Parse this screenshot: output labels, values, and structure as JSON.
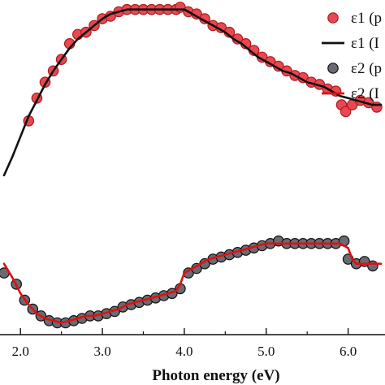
{
  "chart_data": {
    "type": "line",
    "xlabel": "Photon energy (eV)",
    "x_ticks": [
      "2.0",
      "3.0",
      "4.0",
      "5.0",
      "6.0"
    ],
    "xlim": [
      1.75,
      6.45
    ],
    "ylim": [
      -3.2,
      10.2
    ],
    "legend_position": "top-right",
    "legend": [
      {
        "label": "ε1 (p",
        "kind": "marker",
        "fill": "#e8484f",
        "stroke": "#b01820"
      },
      {
        "label": "ε1 (I",
        "kind": "line",
        "color": "#111111"
      },
      {
        "label": "ε2 (p",
        "kind": "marker",
        "fill": "#6a6a72",
        "stroke": "#111111"
      },
      {
        "label": "ε2 (I",
        "kind": "line",
        "color": "#e01010"
      }
    ],
    "series": [
      {
        "name": "ε1 (p",
        "kind": "markers",
        "fill": "#e8484f",
        "stroke": "#b01820",
        "x": [
          2.1,
          2.2,
          2.3,
          2.4,
          2.5,
          2.6,
          2.7,
          2.8,
          2.9,
          3.0,
          3.1,
          3.2,
          3.3,
          3.4,
          3.5,
          3.6,
          3.7,
          3.8,
          3.9,
          3.95,
          4.05,
          4.15,
          4.25,
          4.35,
          4.45,
          4.55,
          4.65,
          4.75,
          4.85,
          4.95,
          5.05,
          5.15,
          5.25,
          5.35,
          5.45,
          5.55,
          5.65,
          5.75,
          5.85,
          5.92,
          5.97,
          6.05,
          6.15,
          6.25,
          6.35
        ],
        "y": [
          5.36,
          6.27,
          6.91,
          7.36,
          7.82,
          8.45,
          8.82,
          8.91,
          9.18,
          9.45,
          9.55,
          9.73,
          9.82,
          9.82,
          9.82,
          9.82,
          9.82,
          9.82,
          9.82,
          9.91,
          9.73,
          9.64,
          9.45,
          9.18,
          9.09,
          8.91,
          8.64,
          8.45,
          8.18,
          7.91,
          7.73,
          7.55,
          7.36,
          7.18,
          7.09,
          6.91,
          6.82,
          6.64,
          6.55,
          6.0,
          5.73,
          6.0,
          6.18,
          6.09,
          5.91
        ]
      },
      {
        "name": "ε1 (I",
        "kind": "line",
        "color": "#111111",
        "x": [
          1.8,
          1.9,
          2.0,
          2.1,
          2.2,
          2.3,
          2.4,
          2.5,
          2.6,
          2.7,
          2.8,
          2.9,
          3.0,
          3.1,
          3.2,
          3.3,
          3.4,
          3.5,
          3.6,
          3.7,
          3.8,
          3.9,
          4.0,
          4.1,
          4.2,
          4.3,
          4.4,
          4.5,
          4.6,
          4.7,
          4.8,
          4.9,
          5.0,
          5.1,
          5.2,
          5.3,
          5.4,
          5.5,
          5.6,
          5.7,
          5.8,
          5.9,
          6.0,
          6.1,
          6.2,
          6.3,
          6.4
        ],
        "y": [
          3.18,
          3.91,
          4.73,
          5.55,
          6.18,
          6.82,
          7.36,
          7.82,
          8.27,
          8.64,
          8.91,
          9.18,
          9.45,
          9.64,
          9.73,
          9.82,
          9.82,
          9.82,
          9.82,
          9.82,
          9.82,
          9.82,
          9.82,
          9.64,
          9.45,
          9.27,
          9.09,
          8.91,
          8.64,
          8.45,
          8.18,
          7.91,
          7.73,
          7.55,
          7.36,
          7.27,
          7.09,
          6.91,
          6.82,
          6.73,
          6.55,
          6.36,
          6.27,
          6.18,
          6.09,
          6.0,
          6.0
        ]
      },
      {
        "name": "ε2 (p",
        "kind": "markers",
        "fill": "#6a6a72",
        "stroke": "#111111",
        "x": [
          1.8,
          1.95,
          2.05,
          2.15,
          2.25,
          2.35,
          2.45,
          2.55,
          2.65,
          2.75,
          2.85,
          2.95,
          3.05,
          3.15,
          3.25,
          3.35,
          3.45,
          3.55,
          3.65,
          3.75,
          3.85,
          3.95,
          4.05,
          4.15,
          4.25,
          4.35,
          4.45,
          4.55,
          4.65,
          4.75,
          4.85,
          4.95,
          5.05,
          5.15,
          5.25,
          5.35,
          5.45,
          5.55,
          5.65,
          5.75,
          5.85,
          5.95,
          6.0,
          6.1,
          6.2,
          6.3
        ],
        "y": [
          -0.73,
          -1.18,
          -1.82,
          -2.18,
          -2.45,
          -2.64,
          -2.73,
          -2.73,
          -2.64,
          -2.55,
          -2.45,
          -2.45,
          -2.36,
          -2.27,
          -2.09,
          -2.0,
          -1.91,
          -1.82,
          -1.73,
          -1.64,
          -1.55,
          -1.36,
          -0.73,
          -0.55,
          -0.36,
          -0.18,
          -0.09,
          0.0,
          0.09,
          0.18,
          0.27,
          0.36,
          0.45,
          0.55,
          0.45,
          0.45,
          0.45,
          0.45,
          0.45,
          0.45,
          0.45,
          0.55,
          -0.18,
          -0.36,
          -0.27,
          -0.45
        ]
      },
      {
        "name": "ε2 (I",
        "kind": "line",
        "color": "#e01010",
        "x": [
          1.8,
          1.9,
          2.0,
          2.1,
          2.2,
          2.3,
          2.4,
          2.5,
          2.6,
          2.7,
          2.8,
          2.9,
          3.0,
          3.1,
          3.2,
          3.3,
          3.4,
          3.5,
          3.6,
          3.7,
          3.8,
          3.9,
          3.95,
          4.0,
          4.1,
          4.2,
          4.3,
          4.4,
          4.5,
          4.6,
          4.7,
          4.8,
          4.9,
          5.0,
          5.1,
          5.2,
          5.3,
          5.4,
          5.5,
          5.6,
          5.7,
          5.8,
          5.9,
          6.0,
          6.05,
          6.1,
          6.2,
          6.3,
          6.4
        ],
        "y": [
          -0.36,
          -0.91,
          -1.55,
          -2.0,
          -2.36,
          -2.55,
          -2.64,
          -2.73,
          -2.64,
          -2.55,
          -2.45,
          -2.45,
          -2.36,
          -2.27,
          -2.18,
          -2.0,
          -1.91,
          -1.82,
          -1.73,
          -1.64,
          -1.55,
          -1.45,
          -1.18,
          -0.73,
          -0.55,
          -0.36,
          -0.18,
          -0.09,
          0.0,
          0.09,
          0.18,
          0.27,
          0.36,
          0.45,
          0.45,
          0.45,
          0.45,
          0.45,
          0.45,
          0.45,
          0.45,
          0.45,
          0.45,
          0.27,
          -0.18,
          -0.36,
          -0.36,
          -0.36,
          -0.36
        ]
      }
    ]
  }
}
